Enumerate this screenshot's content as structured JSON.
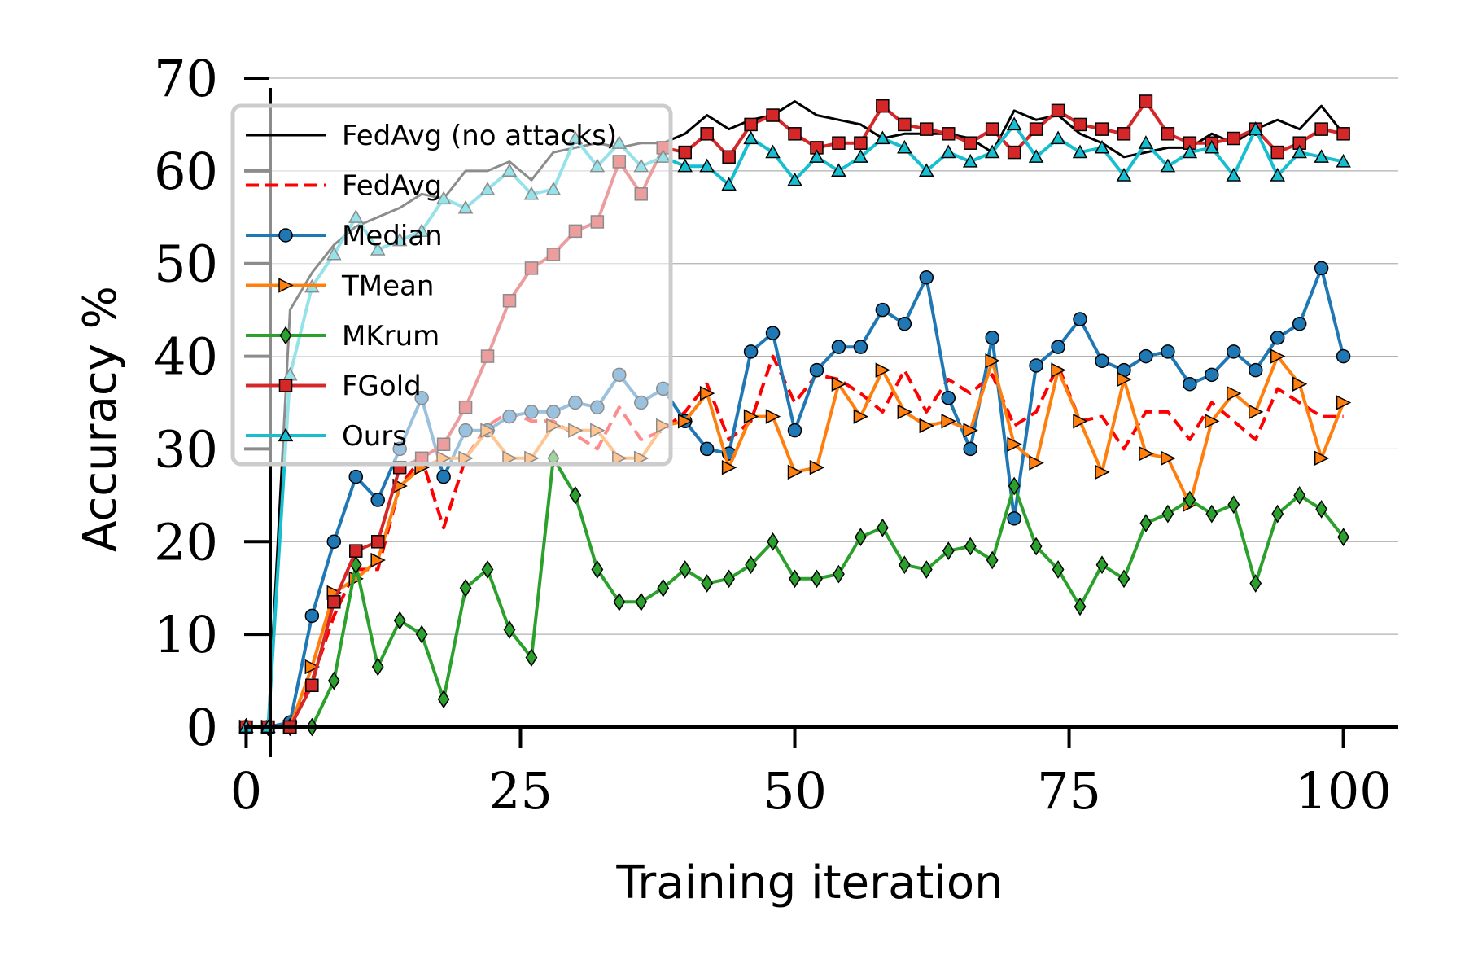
{
  "chart_data": {
    "type": "line",
    "title": "",
    "xlabel": "Training iteration",
    "ylabel": "Accuracy %",
    "xlim": [
      -3,
      105
    ],
    "ylim": [
      0,
      70
    ],
    "xticks": [
      0,
      25,
      50,
      75,
      100
    ],
    "yticks": [
      0,
      10,
      20,
      30,
      40,
      50,
      60,
      70
    ],
    "grid": "horizontal",
    "legend_position": "upper-left",
    "x": [
      0,
      2,
      4,
      6,
      8,
      10,
      12,
      14,
      16,
      18,
      20,
      22,
      24,
      26,
      28,
      30,
      32,
      34,
      36,
      38,
      40,
      42,
      44,
      46,
      48,
      50,
      52,
      54,
      56,
      58,
      60,
      62,
      64,
      66,
      68,
      70,
      72,
      74,
      76,
      78,
      80,
      82,
      84,
      86,
      88,
      90,
      92,
      94,
      96,
      98,
      100
    ],
    "series": [
      {
        "name": "FedAvg (no attacks)",
        "color": "#000000",
        "style": "solid",
        "marker": "none",
        "width": 3,
        "values": [
          0,
          0,
          45,
          49,
          52,
          54,
          55,
          56,
          57.5,
          57,
          60,
          60,
          61,
          59,
          62,
          62.5,
          63,
          62.5,
          63,
          63,
          64,
          66,
          64.5,
          65.5,
          66,
          67.5,
          66,
          65.5,
          65,
          63.5,
          64,
          64,
          64,
          63.5,
          62,
          66.5,
          65.5,
          66,
          64,
          63,
          61.5,
          62,
          62.5,
          62.5,
          64,
          63,
          64.5,
          65.5,
          64.5,
          67,
          64
        ]
      },
      {
        "name": "FedAvg",
        "color": "#ff0000",
        "style": "dashed",
        "marker": "none",
        "width": 4,
        "values": [
          0,
          0,
          0,
          5,
          12,
          17,
          17,
          26,
          29,
          21.5,
          29,
          32.5,
          34,
          33,
          33,
          31.5,
          30,
          34.5,
          31,
          32,
          34,
          37,
          31,
          33,
          40,
          35,
          38,
          37.5,
          36,
          34,
          38.5,
          34,
          37.5,
          36,
          38,
          32.5,
          34,
          39,
          33,
          33.5,
          30,
          34,
          34,
          31,
          35,
          33,
          31,
          36.5,
          35,
          33.5,
          33.5
        ]
      },
      {
        "name": "Median",
        "color": "#1f77b4",
        "style": "solid",
        "marker": "circle",
        "width": 4,
        "values": [
          0,
          0,
          0.5,
          12,
          20,
          27,
          24.5,
          30,
          35.5,
          27,
          32,
          32,
          33.5,
          34,
          34,
          35,
          34.5,
          38,
          35,
          36.5,
          33,
          30,
          29.5,
          40.5,
          42.5,
          32,
          38.5,
          41,
          41,
          45,
          43.5,
          48.5,
          35.5,
          30,
          42,
          22.5,
          39,
          41,
          44,
          39.5,
          38.5,
          40,
          40.5,
          37,
          38,
          40.5,
          38.5,
          42,
          43.5,
          49.5,
          40
        ]
      },
      {
        "name": "TMean",
        "color": "#ff7f0e",
        "style": "solid",
        "marker": "triangle-right",
        "width": 4,
        "values": [
          0,
          0,
          0,
          6.5,
          14.5,
          16,
          18,
          26,
          28,
          29,
          29,
          32,
          29,
          29,
          32.5,
          32,
          32,
          29,
          29,
          32.5,
          33,
          36,
          28,
          33.5,
          33.5,
          27.5,
          28,
          37,
          33.5,
          38.5,
          34,
          32.5,
          33,
          32,
          39.5,
          30.5,
          28.5,
          38.5,
          33,
          27.5,
          37.5,
          29.5,
          29,
          24,
          33,
          36,
          34,
          40,
          37,
          29,
          35
        ]
      },
      {
        "name": "MKrum",
        "color": "#2ca02c",
        "style": "solid",
        "marker": "diamond",
        "width": 4,
        "values": [
          0,
          0,
          0,
          0,
          5,
          17.5,
          6.5,
          11.5,
          10,
          3,
          15,
          17,
          10.5,
          7.5,
          29,
          25,
          17,
          13.5,
          13.5,
          15,
          17,
          15.5,
          16,
          17.5,
          20,
          16,
          16,
          16.5,
          20.5,
          21.5,
          17.5,
          17,
          19,
          19.5,
          18,
          26,
          19.5,
          17,
          13,
          17.5,
          16,
          22,
          23,
          24.5,
          23,
          24,
          15.5,
          23,
          25,
          23.5,
          20.5
        ]
      },
      {
        "name": "FGold",
        "color": "#d62728",
        "style": "solid",
        "marker": "square",
        "width": 4,
        "values": [
          0,
          0,
          0,
          4.5,
          13.5,
          19,
          20,
          28,
          29,
          30.5,
          34.5,
          40,
          46,
          49.5,
          51,
          53.5,
          54.5,
          61,
          57.5,
          62.5,
          62,
          64,
          61.5,
          65,
          66,
          64,
          62.5,
          63,
          63,
          67,
          65,
          64.5,
          64,
          63,
          64.5,
          62,
          64.5,
          66.5,
          65,
          64.5,
          64,
          67.5,
          64,
          63,
          63,
          63.5,
          64.5,
          62,
          63,
          64.5,
          64
        ]
      },
      {
        "name": "Ours",
        "color": "#17becf",
        "style": "solid",
        "marker": "triangle-up",
        "width": 4,
        "values": [
          0,
          0,
          38,
          47.5,
          51,
          55,
          51.5,
          52.5,
          53.5,
          57,
          56,
          58,
          60,
          57.5,
          58,
          63.5,
          60.5,
          63,
          60.5,
          61.5,
          60.5,
          60.5,
          58.5,
          63.5,
          62,
          59,
          61.5,
          60,
          61.5,
          63.5,
          62.5,
          60,
          62,
          61,
          62,
          65,
          61.5,
          63.5,
          62,
          62.5,
          59.5,
          63,
          60.5,
          62,
          62.5,
          59.5,
          64.5,
          59.5,
          62,
          61.5,
          61
        ]
      }
    ]
  }
}
